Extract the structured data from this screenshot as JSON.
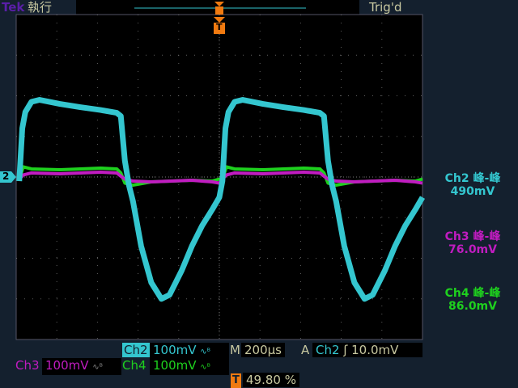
{
  "header": {
    "brand": "Tek",
    "mode": "執行",
    "status": "Trig'd"
  },
  "colors": {
    "ch2": "#34c6cf",
    "ch3": "#c01cc0",
    "ch4": "#1ed01e",
    "trigger": "#f07a10",
    "text": "#c8c8a0",
    "background": "#14202e"
  },
  "markers": {
    "ch2_ground": "2",
    "trigger": "T"
  },
  "measurements": [
    {
      "channel": "Ch2",
      "label": "Ch2 峰-峰",
      "value": "490mV"
    },
    {
      "channel": "Ch3",
      "label": "Ch3 峰-峰",
      "value": "76.0mV"
    },
    {
      "channel": "Ch4",
      "label": "Ch4 峰-峰",
      "value": "86.0mV"
    }
  ],
  "footer": {
    "ch2": {
      "name": "Ch2",
      "scale": "100mV",
      "bw_icon": "bandwidth-limit-icon"
    },
    "ch3": {
      "name": "Ch3",
      "scale": "100mV"
    },
    "ch4": {
      "name": "Ch4",
      "scale": "100mV"
    },
    "timebase_prefix": "M",
    "timebase": "200µs",
    "trigger_prefix": "A",
    "trigger_source": "Ch2",
    "trigger_slope_icon": "rising-edge-icon",
    "trigger_level": "10.0mV",
    "trigger_position": "49.80 %"
  },
  "chart_data": {
    "type": "line",
    "x_unit": "µs",
    "y_unit": "mV",
    "xlim": [
      -1000,
      1000
    ],
    "x_div": 200,
    "ylim_div": [
      -4,
      4
    ],
    "volts_per_div": 100,
    "grid": true,
    "period_us": 1000,
    "first_rise_us": -985,
    "series": [
      {
        "name": "Ch2",
        "x": [
          0,
          15,
          30,
          60,
          100,
          200,
          300,
          400,
          480,
          500,
          520,
          540,
          560,
          600,
          650,
          700,
          740,
          800,
          850,
          900,
          950,
          985,
          1000
        ],
        "y": [
          -10,
          120,
          160,
          185,
          190,
          180,
          172,
          165,
          158,
          150,
          40,
          -20,
          -60,
          -170,
          -260,
          -300,
          -290,
          -230,
          -170,
          -120,
          -80,
          -50,
          -10
        ]
      },
      {
        "name": "Ch3",
        "x": [
          0,
          20,
          60,
          200,
          400,
          480,
          500,
          520,
          560,
          650,
          750,
          850,
          950,
          985,
          1000
        ],
        "y": [
          -5,
          5,
          10,
          8,
          12,
          10,
          2,
          -5,
          -10,
          -12,
          -10,
          -8,
          -12,
          -15,
          -5
        ]
      },
      {
        "name": "Ch4",
        "x": [
          0,
          20,
          60,
          200,
          400,
          480,
          500,
          520,
          560,
          650,
          750,
          850,
          950,
          985,
          1000
        ],
        "y": [
          -5,
          25,
          20,
          18,
          22,
          20,
          10,
          -15,
          -20,
          -12,
          -10,
          -8,
          -10,
          -5,
          -5
        ]
      }
    ]
  }
}
